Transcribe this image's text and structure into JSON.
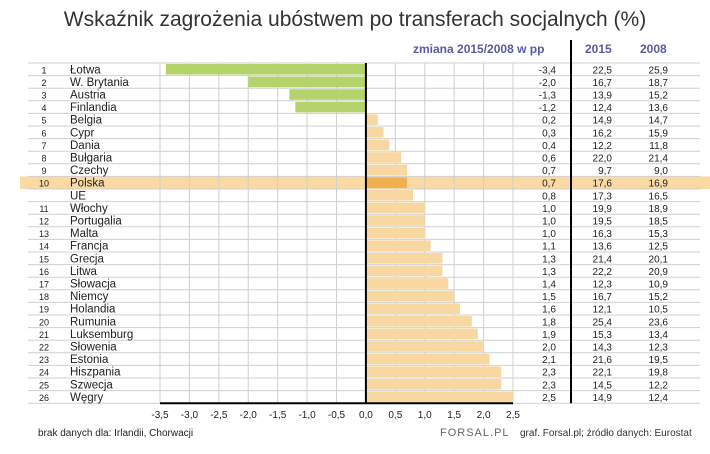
{
  "chart_data": {
    "type": "bar",
    "orientation": "horizontal",
    "title": "Wskaźnik zagrożenia ubóstwem po transferach socjalnych (%)",
    "change_header": "zmiana 2015/2008 w pp",
    "col_2015_header": "2015",
    "col_2008_header": "2008",
    "xlim": [
      -3.5,
      2.5
    ],
    "xticks": [
      "-3,5",
      "-3,0",
      "-2,5",
      "-2,0",
      "-1,5",
      "-1,0",
      "-0,5",
      "0,0",
      "0,5",
      "1,0",
      "1,5",
      "2,0",
      "2,5"
    ],
    "grid": true,
    "highlight": "Polska",
    "colors": {
      "negative": "#b5d36b",
      "positive": "#f8d7a0",
      "highlight_row": "#f8c97a",
      "highlight_bar": "#f0b050",
      "header": "#5a5aa0"
    },
    "rows": [
      {
        "rank": "1",
        "name": "Łotwa",
        "change": -3.4,
        "change_label": "-3,4",
        "v2015": "22,5",
        "v2008": "25,9"
      },
      {
        "rank": "2",
        "name": "W. Brytania",
        "change": -2.0,
        "change_label": "-2,0",
        "v2015": "16,7",
        "v2008": "18,7"
      },
      {
        "rank": "3",
        "name": "Austria",
        "change": -1.3,
        "change_label": "-1,3",
        "v2015": "13,9",
        "v2008": "15,2"
      },
      {
        "rank": "4",
        "name": "Finlandia",
        "change": -1.2,
        "change_label": "-1,2",
        "v2015": "12,4",
        "v2008": "13,6"
      },
      {
        "rank": "5",
        "name": "Belgia",
        "change": 0.2,
        "change_label": "0,2",
        "v2015": "14,9",
        "v2008": "14,7"
      },
      {
        "rank": "6",
        "name": "Cypr",
        "change": 0.3,
        "change_label": "0,3",
        "v2015": "16,2",
        "v2008": "15,9"
      },
      {
        "rank": "7",
        "name": "Dania",
        "change": 0.4,
        "change_label": "0,4",
        "v2015": "12,2",
        "v2008": "11,8"
      },
      {
        "rank": "8",
        "name": "Bułgaria",
        "change": 0.6,
        "change_label": "0,6",
        "v2015": "22,0",
        "v2008": "21,4"
      },
      {
        "rank": "9",
        "name": "Czechy",
        "change": 0.7,
        "change_label": "0,7",
        "v2015": "9,7",
        "v2008": "9,0"
      },
      {
        "rank": "10",
        "name": "Polska",
        "change": 0.7,
        "change_label": "0,7",
        "v2015": "17,6",
        "v2008": "16,9"
      },
      {
        "rank": "",
        "name": "UE",
        "change": 0.8,
        "change_label": "0,8",
        "v2015": "17,3",
        "v2008": "16,5"
      },
      {
        "rank": "11",
        "name": "Włochy",
        "change": 1.0,
        "change_label": "1,0",
        "v2015": "19,9",
        "v2008": "18,9"
      },
      {
        "rank": "12",
        "name": "Portugalia",
        "change": 1.0,
        "change_label": "1,0",
        "v2015": "19,5",
        "v2008": "18,5"
      },
      {
        "rank": "13",
        "name": "Malta",
        "change": 1.0,
        "change_label": "1,0",
        "v2015": "16,3",
        "v2008": "15,3"
      },
      {
        "rank": "14",
        "name": "Francja",
        "change": 1.1,
        "change_label": "1,1",
        "v2015": "13,6",
        "v2008": "12,5"
      },
      {
        "rank": "15",
        "name": "Grecja",
        "change": 1.3,
        "change_label": "1,3",
        "v2015": "21,4",
        "v2008": "20,1"
      },
      {
        "rank": "16",
        "name": "Litwa",
        "change": 1.3,
        "change_label": "1,3",
        "v2015": "22,2",
        "v2008": "20,9"
      },
      {
        "rank": "17",
        "name": "Słowacja",
        "change": 1.4,
        "change_label": "1,4",
        "v2015": "12,3",
        "v2008": "10,9"
      },
      {
        "rank": "18",
        "name": "Niemcy",
        "change": 1.5,
        "change_label": "1,5",
        "v2015": "16,7",
        "v2008": "15,2"
      },
      {
        "rank": "19",
        "name": "Holandia",
        "change": 1.6,
        "change_label": "1,6",
        "v2015": "12,1",
        "v2008": "10,5"
      },
      {
        "rank": "20",
        "name": "Rumunia",
        "change": 1.8,
        "change_label": "1,8",
        "v2015": "25,4",
        "v2008": "23,6"
      },
      {
        "rank": "21",
        "name": "Luksemburg",
        "change": 1.9,
        "change_label": "1,9",
        "v2015": "15,3",
        "v2008": "13,4"
      },
      {
        "rank": "22",
        "name": "Słowenia",
        "change": 2.0,
        "change_label": "2,0",
        "v2015": "14,3",
        "v2008": "12,3"
      },
      {
        "rank": "23",
        "name": "Estonia",
        "change": 2.1,
        "change_label": "2,1",
        "v2015": "21,6",
        "v2008": "19,5"
      },
      {
        "rank": "24",
        "name": "Hiszpania",
        "change": 2.3,
        "change_label": "2,3",
        "v2015": "22,1",
        "v2008": "19,8"
      },
      {
        "rank": "25",
        "name": "Szwecja",
        "change": 2.3,
        "change_label": "2,3",
        "v2015": "14,5",
        "v2008": "12,2"
      },
      {
        "rank": "26",
        "name": "Węgry",
        "change": 2.5,
        "change_label": "2,5",
        "v2015": "14,9",
        "v2008": "12,4"
      }
    ]
  },
  "footer": {
    "note": "brak danych dla: Irlandii, Chorwacji",
    "logo": "FORSAL.PL",
    "source": "graf. Forsal.pl; źródło danych: Eurostat"
  }
}
